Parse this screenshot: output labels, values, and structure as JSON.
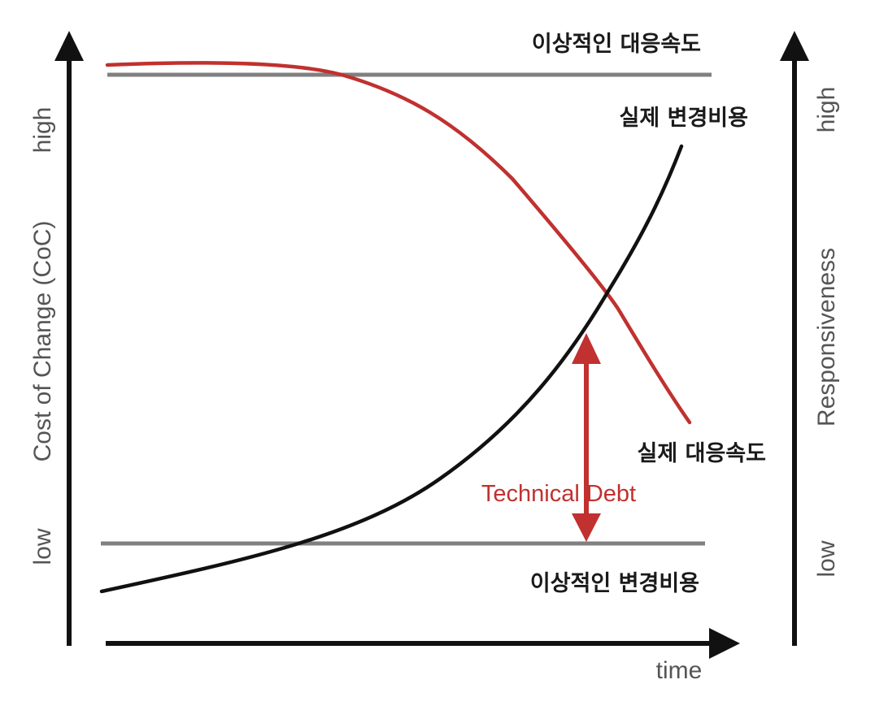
{
  "left_axis": {
    "title": "Cost of Change (CoC)",
    "high": "high",
    "low": "low"
  },
  "right_axis": {
    "title": "Responsiveness",
    "high": "high",
    "low": "low"
  },
  "x_axis": {
    "title": "time"
  },
  "reference_lines": {
    "ideal_responsiveness": "이상적인 대응속도",
    "ideal_cost": "이상적인 변경비용"
  },
  "curves": {
    "actual_cost": "실제 변경비용",
    "actual_responsiveness": "실제 대응속도"
  },
  "gap_label": "Technical Debt",
  "colors": {
    "responsiveness_curve": "#c0312f",
    "cost_curve": "#111111",
    "reference_line": "#808080",
    "axis": "#111111",
    "technical_debt": "#c0312f",
    "axis_text": "#555555"
  }
}
